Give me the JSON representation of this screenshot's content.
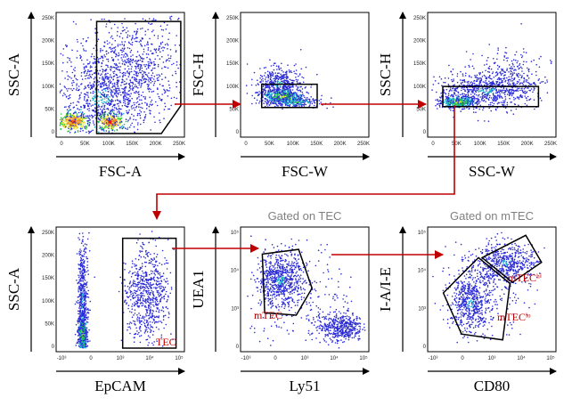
{
  "colors": {
    "arrow": "#c00000",
    "gate": "#000000",
    "gate_label": "#c00000",
    "title": "#808080",
    "density": [
      "#2b2bd6",
      "#18b8c8",
      "#22c03a",
      "#e8e020",
      "#f08020",
      "#e01010"
    ]
  },
  "chart_data": [
    {
      "type": "scatter",
      "id": "p1",
      "xlabel": "FSC-A",
      "ylabel": "SSC-A",
      "title": "",
      "xticks": [
        "0",
        "50K",
        "100K",
        "150K",
        "200K",
        "250K"
      ],
      "yticks": [
        "0",
        "50K",
        "100K",
        "150K",
        "200K",
        "250K"
      ],
      "xlim": [
        0,
        262144
      ],
      "ylim": [
        0,
        262144
      ],
      "gate": {
        "label": "",
        "points": [
          [
            80000,
            0
          ],
          [
            80000,
            250000
          ],
          [
            262000,
            250000
          ],
          [
            262000,
            62000
          ],
          [
            220000,
            0
          ]
        ]
      },
      "populations": [
        {
          "cx": 30000,
          "cy": 26000,
          "sx": 16000,
          "sy": 10000,
          "n": 320,
          "peak": 5
        },
        {
          "cx": 110000,
          "cy": 26000,
          "sx": 14000,
          "sy": 9000,
          "n": 260,
          "peak": 5
        },
        {
          "cx": 90000,
          "cy": 80000,
          "sx": 55000,
          "sy": 55000,
          "n": 900,
          "peak": 1
        },
        {
          "cx": 160000,
          "cy": 150000,
          "sx": 60000,
          "sy": 60000,
          "n": 700,
          "peak": 0
        }
      ]
    },
    {
      "type": "scatter",
      "id": "p2",
      "xlabel": "FSC-W",
      "ylabel": "FSC-H",
      "title": "",
      "xticks": [
        "0",
        "50K",
        "100K",
        "150K",
        "200K",
        "250K"
      ],
      "yticks": [
        "0",
        "50K",
        "100K",
        "150K",
        "200K",
        "250K"
      ],
      "xlim": [
        0,
        262144
      ],
      "ylim": [
        0,
        262144
      ],
      "gate": {
        "label": "",
        "points": [
          [
            38000,
            58000
          ],
          [
            38000,
            110000
          ],
          [
            158000,
            110000
          ],
          [
            158000,
            58000
          ]
        ]
      },
      "populations": [
        {
          "cx": 85000,
          "cy": 82000,
          "sx": 22000,
          "sy": 9000,
          "n": 420,
          "peak": 3
        },
        {
          "cx": 75000,
          "cy": 110000,
          "sx": 25000,
          "sy": 18000,
          "n": 450,
          "peak": 1
        },
        {
          "cx": 110000,
          "cy": 70000,
          "sx": 30000,
          "sy": 6000,
          "n": 200,
          "peak": 2
        }
      ]
    },
    {
      "type": "scatter",
      "id": "p3",
      "xlabel": "SSC-W",
      "ylabel": "SSC-H",
      "title": "",
      "xticks": [
        "0",
        "50K",
        "100K",
        "150K",
        "200K",
        "250K"
      ],
      "yticks": [
        "0",
        "50K",
        "100K",
        "150K",
        "200K",
        "250K"
      ],
      "xlim": [
        0,
        262144
      ],
      "ylim": [
        0,
        262144
      ],
      "gate": {
        "label": "",
        "points": [
          [
            25000,
            60000
          ],
          [
            25000,
            105000
          ],
          [
            232000,
            105000
          ],
          [
            232000,
            60000
          ]
        ]
      },
      "populations": [
        {
          "cx": 60000,
          "cy": 70000,
          "sx": 20000,
          "sy": 7000,
          "n": 380,
          "peak": 3
        },
        {
          "cx": 120000,
          "cy": 95000,
          "sx": 55000,
          "sy": 20000,
          "n": 700,
          "peak": 1
        },
        {
          "cx": 160000,
          "cy": 130000,
          "sx": 40000,
          "sy": 30000,
          "n": 250,
          "peak": 0
        }
      ]
    },
    {
      "type": "scatter",
      "id": "p4",
      "xlabel": "EpCAM",
      "ylabel": "SSC-A",
      "title": "",
      "xticks": [
        "-10³",
        "0",
        "10³",
        "10⁴",
        "10⁵"
      ],
      "yticks": [
        "0",
        "50K",
        "100K",
        "150K",
        "200K",
        "250K"
      ],
      "xlim": [
        0,
        100
      ],
      "ylim": [
        0,
        262144
      ],
      "gate": {
        "label": "TEC",
        "points": [
          [
            52,
            0
          ],
          [
            52,
            245000
          ],
          [
            96,
            245000
          ],
          [
            96,
            0
          ]
        ]
      },
      "populations": [
        {
          "cx": 19,
          "cy": 30000,
          "sx": 1.8,
          "sy": 25000,
          "n": 500,
          "peak": 3
        },
        {
          "cx": 19,
          "cy": 110000,
          "sx": 2.2,
          "sy": 70000,
          "n": 500,
          "peak": 1
        },
        {
          "cx": 72,
          "cy": 120000,
          "sx": 9,
          "sy": 50000,
          "n": 700,
          "peak": 0
        }
      ]
    },
    {
      "type": "scatter",
      "id": "p5",
      "xlabel": "Ly51",
      "ylabel": "UEA1",
      "title": "Gated on TEC",
      "xticks": [
        "-10³",
        "0",
        "10³",
        "10⁴",
        "10⁵"
      ],
      "yticks": [
        "0",
        "10³",
        "10⁴",
        "10⁵"
      ],
      "xlim": [
        0,
        100
      ],
      "ylim": [
        0,
        100
      ],
      "gate": {
        "label": "mTEC",
        "points": [
          [
            15,
            80
          ],
          [
            45,
            84
          ],
          [
            56,
            51
          ],
          [
            43,
            28
          ],
          [
            17,
            30
          ]
        ]
      },
      "populations": [
        {
          "cx": 30,
          "cy": 58,
          "sx": 9,
          "sy": 12,
          "n": 650,
          "peak": 1
        },
        {
          "cx": 80,
          "cy": 18,
          "sx": 9,
          "sy": 6,
          "n": 450,
          "peak": 0
        },
        {
          "cx": 50,
          "cy": 40,
          "sx": 22,
          "sy": 25,
          "n": 250,
          "peak": 0
        }
      ]
    },
    {
      "type": "scatter",
      "id": "p6",
      "xlabel": "CD80",
      "ylabel": "I-A/I-E",
      "title": "Gated on mTEC",
      "xticks": [
        "-10³",
        "0",
        "10³",
        "10⁴",
        "10⁵"
      ],
      "yticks": [
        "0",
        "10³",
        "10⁴",
        "10⁵"
      ],
      "xlim": [
        0,
        100
      ],
      "ylim": [
        0,
        100
      ],
      "gates": [
        {
          "label": "mTECʰⁱ",
          "points": [
            [
              42,
              77
            ],
            [
              78,
              96
            ],
            [
              91,
              73
            ],
            [
              67,
              56
            ]
          ]
        },
        {
          "label": "mTECˡᵒ",
          "points": [
            [
              10,
              47
            ],
            [
              39,
              77
            ],
            [
              65,
              55
            ],
            [
              59,
              7
            ],
            [
              25,
              12
            ]
          ]
        }
      ],
      "populations": [
        {
          "cx": 32,
          "cy": 38,
          "sx": 8,
          "sy": 12,
          "n": 500,
          "peak": 1
        },
        {
          "cx": 62,
          "cy": 73,
          "sx": 12,
          "sy": 8,
          "n": 450,
          "peak": 1
        },
        {
          "cx": 45,
          "cy": 55,
          "sx": 18,
          "sy": 20,
          "n": 300,
          "peak": 0
        }
      ]
    }
  ]
}
